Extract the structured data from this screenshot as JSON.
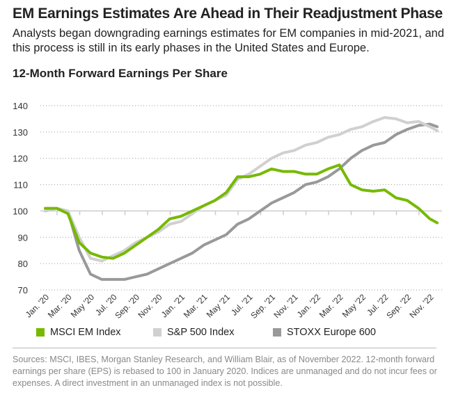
{
  "title": "EM Earnings Estimates Are Ahead in Their Readjustment Phase",
  "subtitle": "Analysts began downgrading earnings estimates for EM companies in mid-2021, and this process is still in its early phases in the United States and Europe.",
  "footnote": "Sources: MSCI, IBES, Morgan Stanley Research, and William Blair, as of November 2022. 12-month forward earnings per share (EPS) is rebased to 100 in January 2020. Indices are unmanaged and do not incur fees or expenses. A direct investment in an unmanaged index is not possible.",
  "chart_data": {
    "type": "line",
    "title": "12-Month Forward Earnings Per Share",
    "xlabel": "",
    "ylabel": "",
    "ylim": [
      70,
      140
    ],
    "yticks": [
      "140",
      "130",
      "120",
      "110",
      "100",
      "90",
      "80",
      "70"
    ],
    "grid": true,
    "legend_position": "bottom",
    "xtick_labels": [
      "Jan. '20",
      "Mar. '20",
      "May '20",
      "Jul. '20",
      "Sep. '20",
      "Nov. '20",
      "Jan. '21",
      "Mar. '21",
      "May '21",
      "Jul. '21",
      "Sep. '21",
      "Nov. '21",
      "Jan. '22",
      "Mar. '22",
      "May '22",
      "Jul. '22",
      "Sep. '22",
      "Nov. '22"
    ],
    "x": [
      "2020-01",
      "2020-02",
      "2020-03",
      "2020-04",
      "2020-05",
      "2020-06",
      "2020-07",
      "2020-08",
      "2020-09",
      "2020-10",
      "2020-11",
      "2020-12",
      "2021-01",
      "2021-02",
      "2021-03",
      "2021-04",
      "2021-05",
      "2021-06",
      "2021-07",
      "2021-08",
      "2021-09",
      "2021-10",
      "2021-11",
      "2021-12",
      "2022-01",
      "2022-02",
      "2022-03",
      "2022-04",
      "2022-05",
      "2022-06",
      "2022-07",
      "2022-08",
      "2022-09",
      "2022-10",
      "2022-11",
      "2022-11-end"
    ],
    "series": [
      {
        "name": "MSCI EM Index",
        "color": "#76b900",
        "values": [
          101,
          101,
          99,
          88,
          84,
          82.5,
          82,
          84,
          87,
          90,
          93,
          97,
          98,
          100,
          102,
          104,
          107,
          113,
          113,
          114,
          116,
          115,
          115,
          114,
          114,
          116,
          117.5,
          110,
          108,
          107.5,
          108,
          105,
          104,
          101,
          97,
          95.5
        ]
      },
      {
        "name": "S&P 500 Index",
        "color": "#d0d0d0",
        "values": [
          100,
          101,
          100,
          90,
          82,
          81,
          83,
          85,
          88,
          90,
          92,
          95,
          96,
          99,
          102,
          104,
          106,
          112,
          114,
          117,
          120,
          122,
          123,
          125,
          126,
          128,
          129,
          131,
          132,
          134,
          135.5,
          135,
          133.5,
          134,
          132,
          130.5
        ]
      },
      {
        "name": "STOXX Europe 600",
        "color": "#999999",
        "values": [
          100,
          101,
          100,
          85,
          76,
          74,
          74,
          74,
          75,
          76,
          78,
          80,
          82,
          84,
          87,
          89,
          91,
          95,
          97,
          100,
          103,
          105,
          107,
          110,
          111,
          113,
          116,
          120,
          123,
          125,
          126,
          129,
          131,
          132.5,
          133,
          132
        ]
      }
    ]
  }
}
